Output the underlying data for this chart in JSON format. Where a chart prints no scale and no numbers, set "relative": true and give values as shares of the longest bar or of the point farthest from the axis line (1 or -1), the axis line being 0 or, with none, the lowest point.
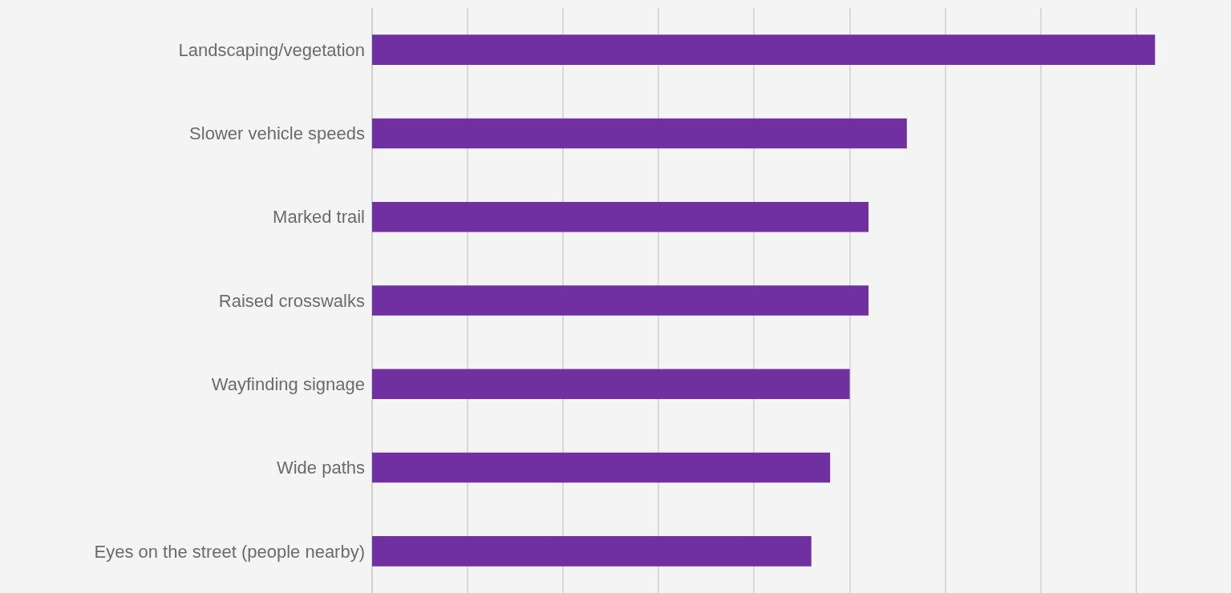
{
  "chart_data": {
    "type": "bar",
    "orientation": "horizontal",
    "relative": true,
    "grid": "x",
    "legend": false,
    "categories": [
      "Landscaping/vegetation",
      "Slower vehicle speeds",
      "Marked trail",
      "Raised crosswalks",
      "Wayfinding signage",
      "Wide paths",
      "Eyes on the street (people nearby)"
    ],
    "values": [
      1,
      0.683,
      0.634,
      0.634,
      0.61,
      0.585,
      0.561
    ],
    "color": "#7030a0"
  }
}
